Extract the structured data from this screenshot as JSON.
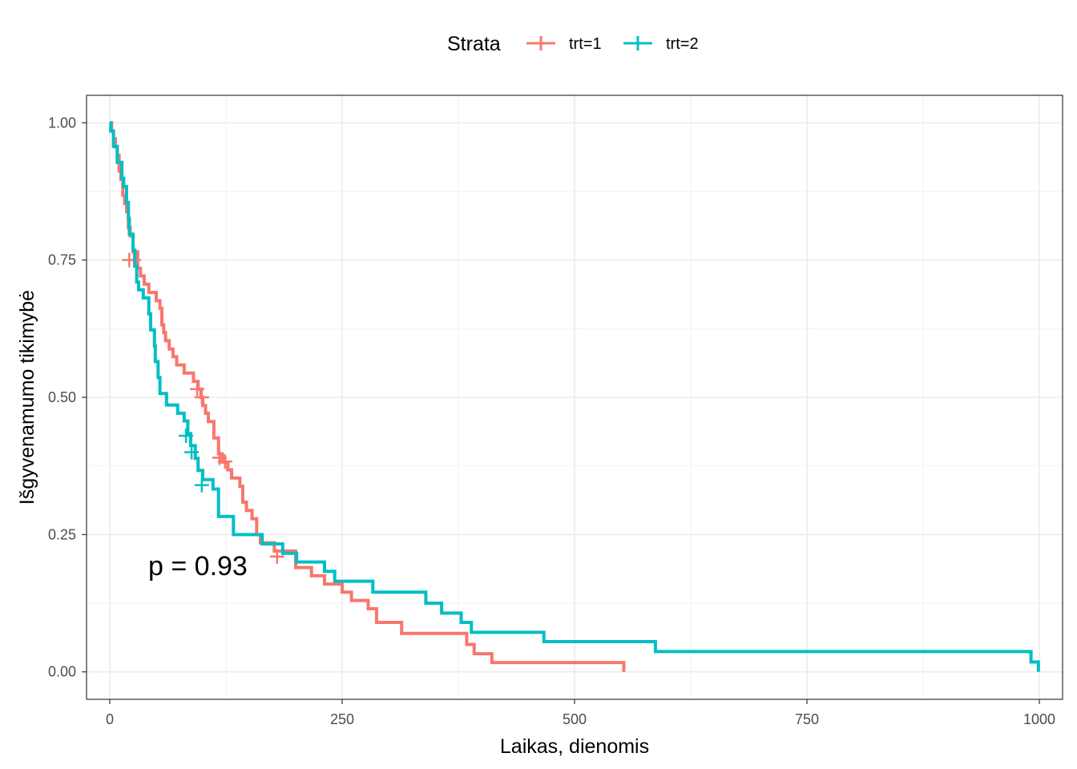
{
  "chart_data": {
    "type": "line",
    "subtype": "kaplan-meier step curve",
    "xlabel": "Laikas, dienomis",
    "ylabel": "Išgyvenamumo tikimybė",
    "xlim": [
      -25,
      1025
    ],
    "ylim": [
      -0.05,
      1.05
    ],
    "x_ticks": [
      0,
      250,
      500,
      750,
      1000
    ],
    "x_tick_labels": [
      "0",
      "250",
      "500",
      "750",
      "1000"
    ],
    "y_ticks": [
      0,
      0.25,
      0.5,
      0.75,
      1
    ],
    "y_tick_labels": [
      "0.00",
      "0.25",
      "0.50",
      "0.75",
      "1.00"
    ],
    "grid": true,
    "legend": {
      "title": "Strata",
      "position": "top",
      "items": [
        "trt=1",
        "trt=2"
      ]
    },
    "annotation": "p = 0.93",
    "series": [
      {
        "name": "trt=1",
        "color": "#F8766D",
        "x": [
          0,
          2,
          4,
          6,
          8,
          10,
          12,
          14,
          16,
          18,
          20,
          22,
          25,
          30,
          33,
          37,
          42,
          50,
          54,
          56,
          58,
          60,
          64,
          68,
          72,
          80,
          90,
          95,
          98,
          100,
          103,
          106,
          112,
          117,
          121,
          127,
          131,
          140,
          143,
          147,
          153,
          158,
          162,
          177,
          200,
          217,
          231,
          250,
          260,
          278,
          287,
          314,
          384,
          392,
          411,
          553,
          553
        ],
        "y": [
          1.0,
          0.985,
          0.971,
          0.956,
          0.941,
          0.912,
          0.897,
          0.868,
          0.853,
          0.838,
          0.809,
          0.794,
          0.765,
          0.735,
          0.721,
          0.706,
          0.691,
          0.676,
          0.662,
          0.632,
          0.618,
          0.603,
          0.588,
          0.574,
          0.559,
          0.544,
          0.529,
          0.515,
          0.5,
          0.485,
          0.471,
          0.456,
          0.426,
          0.397,
          0.382,
          0.368,
          0.353,
          0.338,
          0.309,
          0.294,
          0.279,
          0.25,
          0.235,
          0.22,
          0.19,
          0.175,
          0.16,
          0.145,
          0.13,
          0.115,
          0.09,
          0.07,
          0.05,
          0.033,
          0.017,
          0.017,
          0.0
        ],
        "censored": [
          [
            21,
            0.75
          ],
          [
            26,
            0.75
          ],
          [
            94,
            0.515
          ],
          [
            99,
            0.5
          ],
          [
            118,
            0.39
          ],
          [
            124,
            0.383
          ],
          [
            180,
            0.21
          ]
        ]
      },
      {
        "name": "trt=2",
        "color": "#00BFC4",
        "x": [
          0,
          1,
          4,
          8,
          13,
          15,
          18,
          20,
          21,
          25,
          27,
          29,
          31,
          36,
          42,
          44,
          48,
          49,
          52,
          54,
          61,
          73,
          80,
          84,
          87,
          92,
          95,
          100,
          111,
          117,
          126,
          133,
          143,
          144,
          151,
          153,
          164,
          186,
          201,
          228,
          231,
          242,
          283,
          340,
          357,
          378,
          389,
          467,
          587,
          991,
          999
        ],
        "y": [
          1.0,
          0.985,
          0.957,
          0.928,
          0.899,
          0.884,
          0.855,
          0.826,
          0.797,
          0.768,
          0.739,
          0.71,
          0.696,
          0.681,
          0.652,
          0.623,
          0.594,
          0.565,
          0.536,
          0.507,
          0.486,
          0.471,
          0.457,
          0.434,
          0.412,
          0.389,
          0.367,
          0.35,
          0.333,
          0.283,
          0.283,
          0.25,
          0.25,
          0.25,
          0.25,
          0.25,
          0.233,
          0.216,
          0.2,
          0.2,
          0.183,
          0.165,
          0.145,
          0.125,
          0.107,
          0.09,
          0.072,
          0.055,
          0.037,
          0.018,
          0.0
        ],
        "censored": [
          [
            82,
            0.43
          ],
          [
            88,
            0.4
          ],
          [
            99,
            0.34
          ]
        ]
      }
    ]
  }
}
